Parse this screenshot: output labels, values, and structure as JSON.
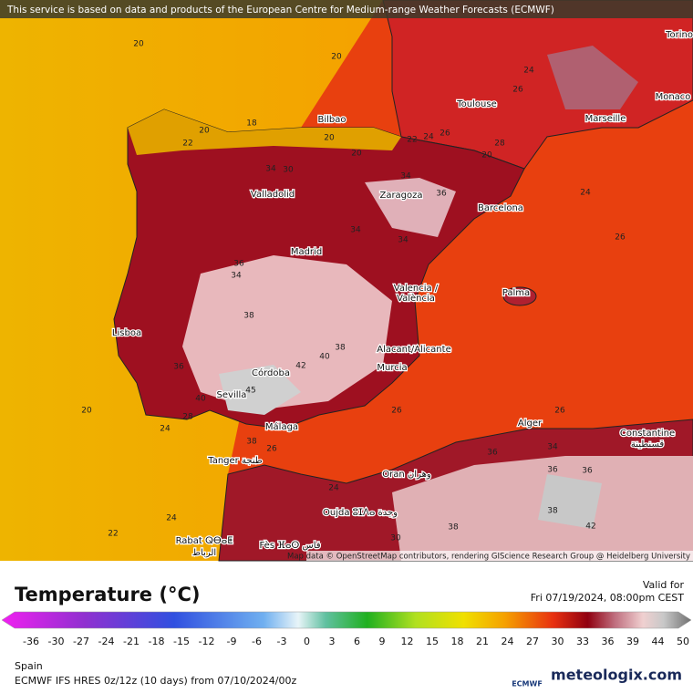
{
  "header": {
    "disclaimer": "This service is based on data and products of the European Centre for Medium-range Weather Forecasts (ECMWF)"
  },
  "attribution": "Map data © OpenStreetMap contributors, rendering GIScience Research Group @ Heidelberg University",
  "cities": [
    "Torino",
    "Monaco",
    "Toulouse",
    "Marseille",
    "Bilbao",
    "Valladolid",
    "Zaragoza",
    "Barcelona",
    "Madrid",
    "Valencia /",
    "València",
    "Palma",
    "Lisboa",
    "Alacant/Alicante",
    "Murcia",
    "Córdoba",
    "Sevilla",
    "Málaga",
    "Alger",
    "Constantine",
    "قسنطينة",
    "Tanger طنجة",
    "Oran وهران",
    "Oujda ⵓⵊⴷⴰ وجدة",
    "Rabat ⵕⴱⴰⵟ",
    "الرباط",
    "Fès ⴼⴰⵙ فاس"
  ],
  "contour_labels": [
    20,
    20,
    22,
    20,
    18,
    20,
    20,
    22,
    24,
    26,
    28,
    24,
    26,
    20,
    24,
    26,
    34,
    30,
    34,
    36,
    34,
    34,
    36,
    34,
    38,
    40,
    38,
    42,
    36,
    40,
    45,
    24,
    28,
    38,
    26,
    26,
    20,
    22,
    24,
    24,
    26,
    36,
    34,
    36,
    36,
    38,
    42,
    38,
    30
  ],
  "legend": {
    "title": "Temperature (°C)",
    "ticks": [
      -36,
      -30,
      -27,
      -24,
      -21,
      -18,
      -15,
      -12,
      -9,
      -6,
      -3,
      0,
      3,
      6,
      9,
      12,
      15,
      18,
      21,
      24,
      27,
      30,
      33,
      36,
      39,
      44,
      50
    ]
  },
  "valid": {
    "label": "Valid for",
    "time": "Fri 07/19/2024, 08:00pm CEST"
  },
  "footer": {
    "region": "Spain",
    "model": "ECMWF IFS HRES 0z/12z (10 days) from 07/10/2024/00z",
    "logo": "ECMWF",
    "brand": "meteologix.com"
  }
}
